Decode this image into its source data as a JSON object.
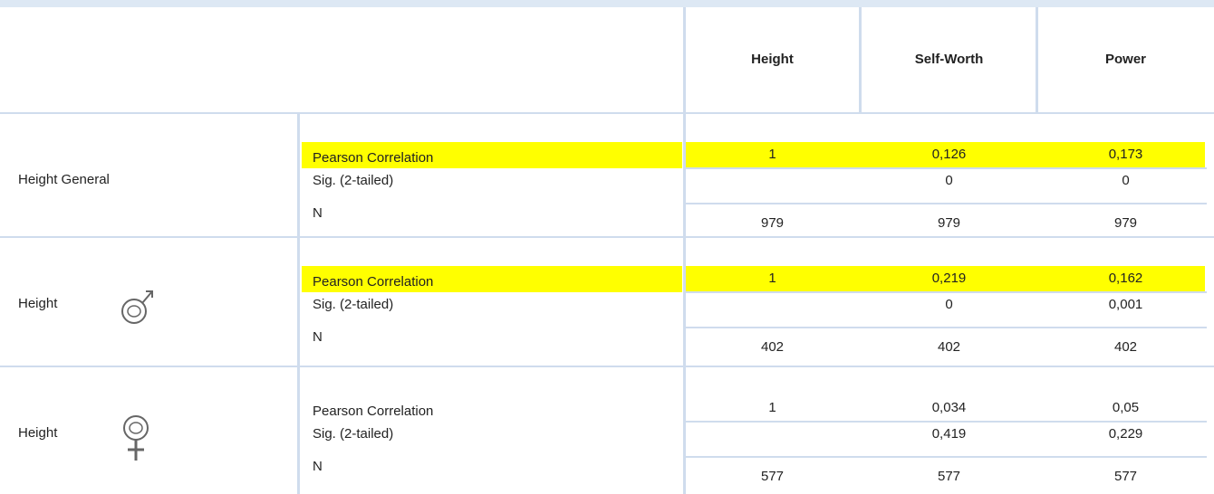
{
  "header": {
    "columns": [
      "Height",
      "Self-Worth",
      "Power"
    ]
  },
  "groups": [
    {
      "label": "Height General",
      "rows": [
        {
          "label": "Pearson Correlation",
          "values": [
            "1",
            "0,126",
            "0,173"
          ],
          "highlight": true
        },
        {
          "label": "Sig. (2-tailed)",
          "values": [
            null,
            "0",
            "0"
          ]
        },
        {
          "label": "N",
          "values": [
            "979",
            "979",
            "979"
          ]
        }
      ]
    },
    {
      "label": "Height",
      "symbol": "male",
      "rows": [
        {
          "label": "Pearson Correlation",
          "values": [
            "1",
            "0,219",
            "0,162"
          ],
          "highlight": true
        },
        {
          "label": "Sig. (2-tailed)",
          "values": [
            null,
            "0",
            "0,001"
          ]
        },
        {
          "label": "N",
          "values": [
            "402",
            "402",
            "402"
          ]
        }
      ]
    },
    {
      "label": "Height",
      "symbol": "female",
      "rows": [
        {
          "label": "Pearson Correlation",
          "values": [
            "1",
            "0,034",
            "0,05"
          ]
        },
        {
          "label": "Sig. (2-tailed)",
          "values": [
            null,
            "0,419",
            "0,229"
          ]
        },
        {
          "label": "N",
          "values": [
            "577",
            "577",
            "577"
          ]
        }
      ]
    }
  ]
}
